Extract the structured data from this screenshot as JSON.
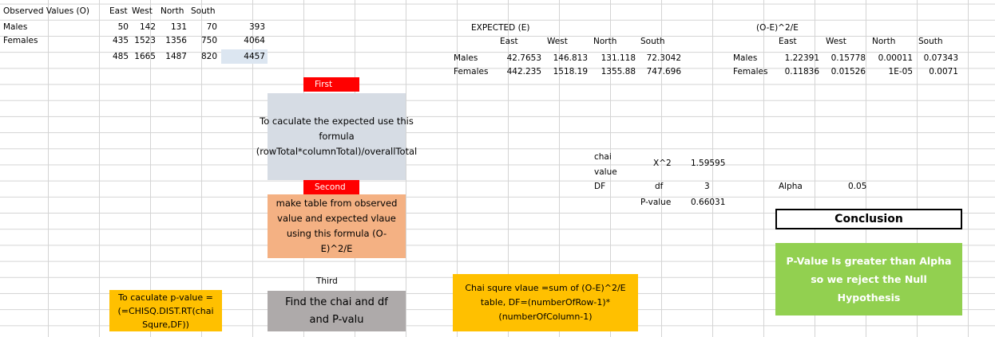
{
  "observed": {
    "title": "Observed Values (O)",
    "headers": [
      "East",
      "West",
      "North",
      "South"
    ],
    "rows": [
      {
        "label": "Males",
        "values": [
          "50",
          "142",
          "131",
          "70"
        ],
        "total": "393"
      },
      {
        "label": "Females",
        "values": [
          "435",
          "1523",
          "1356",
          "750"
        ],
        "total": "4064"
      }
    ],
    "col_totals": [
      "485",
      "1665",
      "1487",
      "820"
    ],
    "grand_total": "4457"
  },
  "expected": {
    "title": "EXPECTED (E)",
    "headers": [
      "East",
      "West",
      "North",
      "South"
    ],
    "rows": [
      {
        "label": "Males",
        "values": [
          "42.7653",
          "146.813",
          "131.118",
          "72.3042"
        ]
      },
      {
        "label": "Females",
        "values": [
          "442.235",
          "1518.19",
          "1355.88",
          "747.696"
        ]
      }
    ]
  },
  "oe": {
    "title": "(O-E)^2/E",
    "headers": [
      "East",
      "West",
      "North",
      "South"
    ],
    "rows": [
      {
        "label": "Males",
        "values": [
          "1.22391",
          "0.15778",
          "0.00011",
          "0.07343"
        ]
      },
      {
        "label": "Females",
        "values": [
          "0.11836",
          "0.01526",
          "1E-05",
          "0.0071"
        ]
      }
    ]
  },
  "steps": {
    "first_tag": "First",
    "first_text": "To caculate the expected use this formula (rowTotal*columnTotal)/overallTotal",
    "second_tag": "Second",
    "second_text": "make table from observed value and expected vlaue using this formula (O-E)^2/E",
    "third_tag": "Third",
    "third_text": "Find the chai and df and P-valu",
    "pvalue_text": "To caculate p-value =(=CHISQ.DIST.RT(chai Squre,DF))",
    "chai_text": "Chai squre vlaue =sum of (O-E)^2/E table, DF=(numberOfRow-1)*(numberOfColumn-1)"
  },
  "stats": {
    "chai_label": "chai value",
    "x2_label": "X^2",
    "x2_value": "1.59595",
    "df_label_left": "DF",
    "df_label": "df",
    "df_value": "3",
    "pvalue_label": "P-value",
    "pvalue_value": "0.66031",
    "alpha_label": "Alpha",
    "alpha_value": "0.05"
  },
  "conclusion": {
    "title": "Conclusion",
    "text": "P-Value Is greater than Alpha so we reject the Null Hypothesis"
  },
  "colors": {
    "red": "#ff0000",
    "blue_gray": "#d6dce4",
    "salmon": "#f4b183",
    "gray": "#aeaaaa",
    "yellow": "#ffc000",
    "green": "#92d050",
    "selection": "#dce6f1"
  }
}
